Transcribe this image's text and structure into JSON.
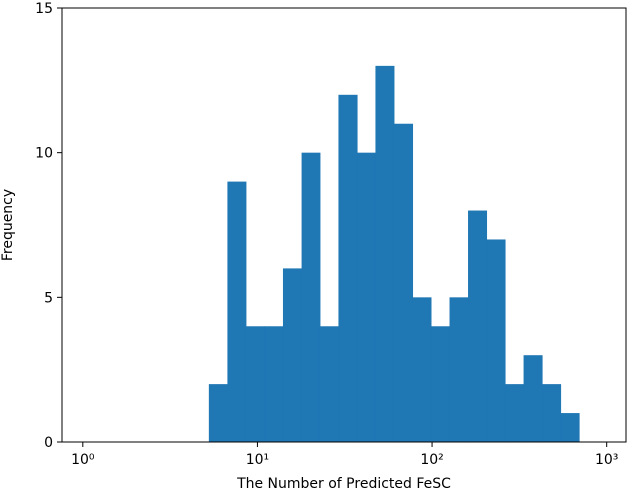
{
  "chart_data": {
    "type": "histogram",
    "x_label": "The Number of Predicted FeSC",
    "y_label": "Frequency",
    "bins": [
      5.27,
      6.73,
      8.59,
      10.96,
      14.0,
      17.9,
      22.8,
      29.1,
      37.2,
      47.4,
      60.5,
      77.3,
      98.6,
      125.9,
      160.7,
      205.1,
      261.8,
      334.2,
      426.6,
      544.5,
      695.0
    ],
    "values": [
      2,
      9,
      4,
      4,
      6,
      10,
      4,
      12,
      10,
      13,
      11,
      5,
      4,
      5,
      8,
      7,
      2,
      3,
      2,
      1
    ],
    "color": "#1f77b4",
    "x_scale": "log",
    "xlim": [
      0.76,
      1290
    ],
    "ylim": [
      0,
      15
    ],
    "xticks": [
      {
        "value": 1,
        "label": "10⁰"
      },
      {
        "value": 10,
        "label": "10¹"
      },
      {
        "value": 100,
        "label": "10²"
      },
      {
        "value": 1000,
        "label": "10³"
      }
    ],
    "yticks": [
      0,
      5,
      10,
      15
    ]
  }
}
